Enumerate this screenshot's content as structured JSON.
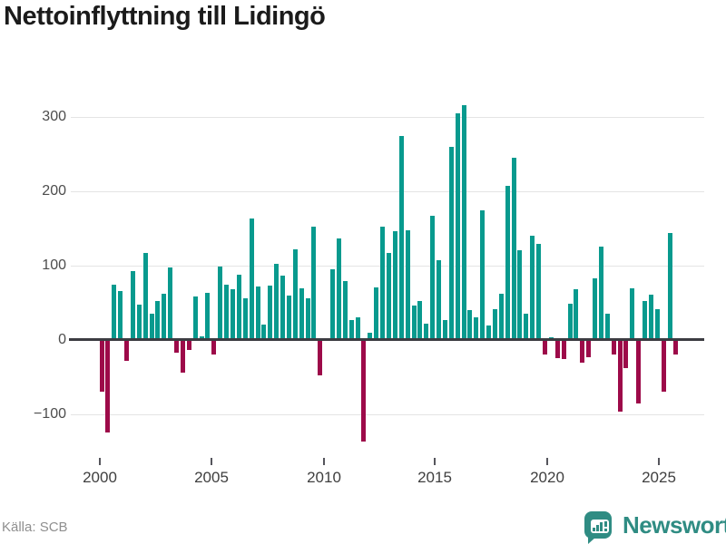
{
  "title": "Nettoinflyttning till Lidingö",
  "source": "Källa: SCB",
  "logo": {
    "brand": "Newsworthy"
  },
  "chart_data": {
    "type": "bar",
    "title": "Nettoinflyttning till Lidingö",
    "xlabel": "",
    "ylabel": "",
    "x_tick_labels": [
      "2000",
      "2005",
      "2010",
      "2015",
      "2020",
      "2025"
    ],
    "y_tick_values": [
      300,
      200,
      100,
      0,
      -100
    ],
    "y_tick_labels": [
      "300",
      "200",
      "100",
      "0",
      "−100"
    ],
    "ylim": [
      -155,
      335
    ],
    "x_range_label": "2000–2025, one bar per period",
    "grid": true,
    "legend": false,
    "colors": {
      "positive": "#089a8e",
      "negative": "#9d0a49"
    },
    "values": [
      -70,
      -124,
      74,
      66,
      -28,
      93,
      48,
      117,
      35,
      52,
      62,
      97,
      -17,
      -44,
      -14,
      58,
      5,
      63,
      -20,
      99,
      75,
      68,
      88,
      56,
      163,
      72,
      21,
      73,
      103,
      86,
      60,
      122,
      70,
      56,
      152,
      -47,
      0,
      95,
      136,
      79,
      27,
      30,
      -137,
      10,
      71,
      153,
      117,
      146,
      274,
      147,
      46,
      52,
      22,
      167,
      107,
      27,
      260,
      305,
      316,
      40,
      30,
      174,
      20,
      41,
      62,
      207,
      245,
      121,
      35,
      140,
      129,
      -20,
      4,
      -24,
      -25,
      49,
      68,
      -31,
      -23,
      83,
      126,
      35,
      -19,
      -96,
      -38,
      70,
      -85,
      52,
      61,
      41,
      -70,
      144,
      -20
    ]
  }
}
